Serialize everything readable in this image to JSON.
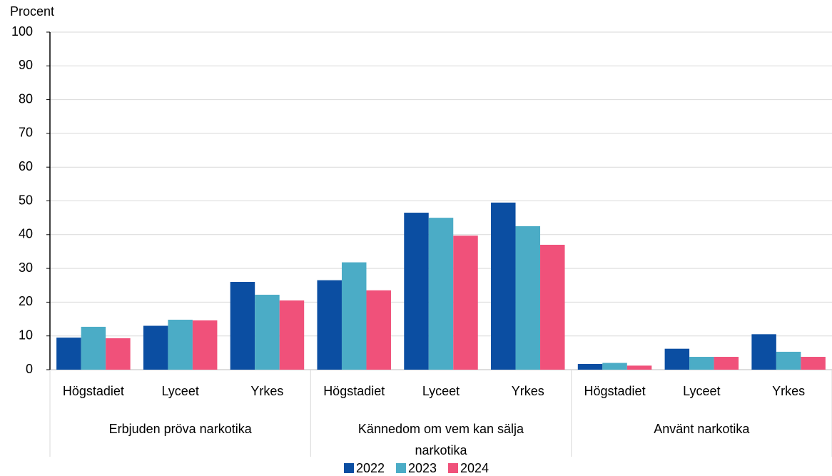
{
  "chart_data": {
    "type": "bar",
    "y_label": "Procent",
    "categories": [
      "Högstadiet",
      "Lyceet",
      "Yrkes",
      "Högstadiet",
      "Lyceet",
      "Yrkes",
      "Högstadiet",
      "Lyceet",
      "Yrkes"
    ],
    "groups": [
      "Erbjuden pröva narkotika",
      "Kännedom om vem kan sälja narkotika",
      "Använt narkotika"
    ],
    "series": [
      {
        "name": "2022",
        "color": "#0b4ea2",
        "values": [
          9.5,
          13,
          26,
          26.5,
          46.5,
          49.5,
          1.7,
          6.2,
          10.5
        ]
      },
      {
        "name": "2023",
        "color": "#4bacc6",
        "values": [
          12.7,
          14.8,
          22.2,
          31.8,
          45,
          42.5,
          2,
          3.8,
          5.3
        ]
      },
      {
        "name": "2024",
        "color": "#f0517a",
        "values": [
          9.3,
          14.6,
          20.5,
          23.5,
          39.7,
          37,
          1.2,
          3.8,
          3.8
        ]
      }
    ],
    "ylim": [
      0,
      100
    ],
    "yticks": [
      0,
      10,
      20,
      30,
      40,
      50,
      60,
      70,
      80,
      90,
      100
    ],
    "grid": true,
    "legend": "bottom"
  }
}
